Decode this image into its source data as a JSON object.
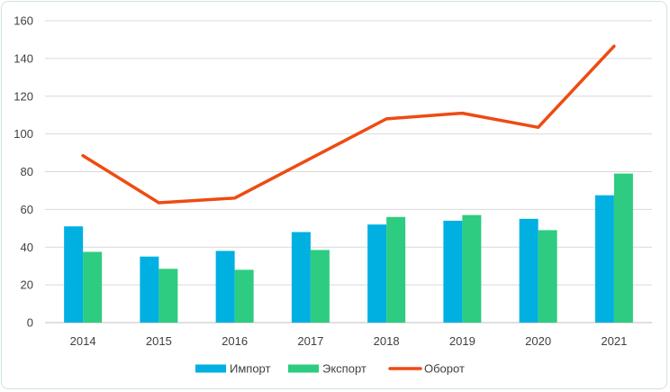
{
  "chart_data": {
    "type": "bar",
    "categories": [
      "2014",
      "2015",
      "2016",
      "2017",
      "2018",
      "2019",
      "2020",
      "2021"
    ],
    "series": [
      {
        "name": "Импорт",
        "type": "bar",
        "color": "#00b0e0",
        "values": [
          51,
          35,
          38,
          48,
          52,
          54,
          55,
          67.5
        ]
      },
      {
        "name": "Экспорт",
        "type": "bar",
        "color": "#2ecc80",
        "values": [
          37.5,
          28.5,
          28,
          38.5,
          56,
          57,
          49,
          79
        ]
      },
      {
        "name": "Оборот",
        "type": "line",
        "color": "#ee4b12",
        "values": [
          88.5,
          63.5,
          66,
          87,
          108,
          111,
          103.5,
          146.5
        ]
      }
    ],
    "yticks": [
      "0",
      "20",
      "40",
      "60",
      "80",
      "100",
      "120",
      "140",
      "160"
    ],
    "ylim": [
      0,
      160
    ],
    "grid": true,
    "legend": "bottom"
  }
}
